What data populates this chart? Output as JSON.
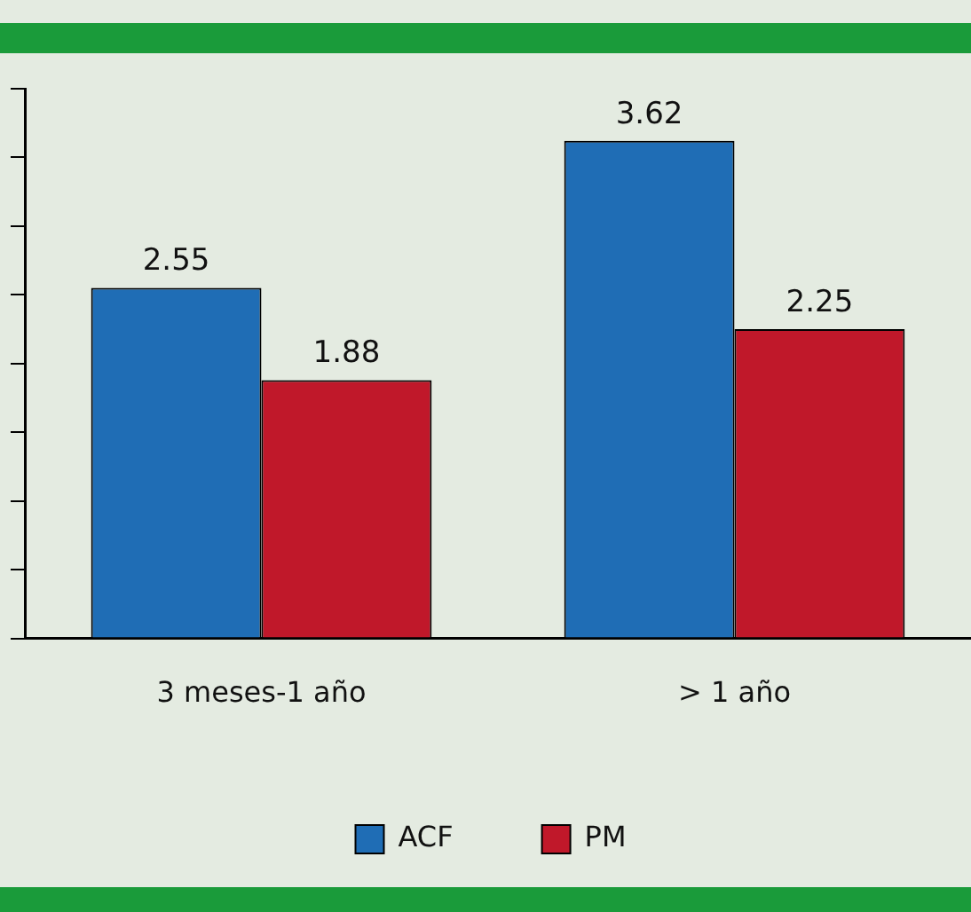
{
  "chart_data": {
    "type": "bar",
    "categories": [
      "3 meses-1 año",
      "> 1 año"
    ],
    "series": [
      {
        "name": "ACF",
        "color": "#1f6db5",
        "values": [
          2.55,
          3.62
        ]
      },
      {
        "name": "PM",
        "color": "#c0182a",
        "values": [
          1.88,
          2.25
        ]
      }
    ],
    "ylim": [
      0,
      4
    ],
    "yticks": [
      {
        "value": 0,
        "label": null
      },
      {
        "value": 0.5,
        "label": null
      },
      {
        "value": 1,
        "label": null
      },
      {
        "value": 1.5,
        "label": null
      },
      {
        "value": 2,
        "label": null
      },
      {
        "value": 2.5,
        "label": null
      },
      {
        "value": 3,
        "label": null
      },
      {
        "value": 3.5,
        "label": null
      },
      {
        "value": 4,
        "label": null
      }
    ],
    "tick_labels": "x",
    "grid": false,
    "legend": "bottom",
    "data_labels": true
  }
}
